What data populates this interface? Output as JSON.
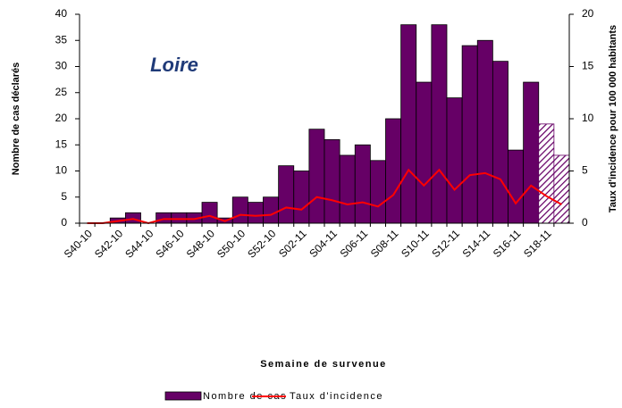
{
  "chart_data": {
    "type": "bar_line",
    "title": "Loire",
    "x_label": "Semaine de survenue",
    "y_label": "Nombre de cas déclarés",
    "y2_label": "Taux d'incidence pour 100 000 habitants",
    "categories": [
      "S40-10",
      null,
      "S42-10",
      null,
      "S44-10",
      null,
      "S46-10",
      null,
      "S48-10",
      null,
      "S50-10",
      null,
      "S52-10",
      null,
      "S02-11",
      null,
      "S04-11",
      null,
      "S06-11",
      null,
      "S08-11",
      null,
      "S10-11",
      null,
      "S12-11",
      null,
      "S14-11",
      null,
      "S16-11",
      null,
      "S18-11",
      null
    ],
    "series": [
      {
        "name": "Nombre de cas",
        "type": "bar",
        "color": "#660066",
        "values": [
          0,
          0,
          1,
          2,
          0,
          2,
          2,
          2,
          4,
          1,
          5,
          4,
          5,
          11,
          10,
          18,
          16,
          13,
          15,
          12,
          20,
          38,
          27,
          38,
          24,
          34,
          35,
          31,
          14,
          27,
          19,
          13
        ]
      },
      {
        "name": "Taux d'incidence",
        "type": "line",
        "axis": "y2",
        "color": "#ff0000",
        "values": [
          0,
          0,
          0.2,
          0.4,
          0,
          0.4,
          0.4,
          0.4,
          0.7,
          0.2,
          0.8,
          0.7,
          0.8,
          1.5,
          1.3,
          2.5,
          2.2,
          1.8,
          2.0,
          1.6,
          2.7,
          5.1,
          3.6,
          5.1,
          3.2,
          4.6,
          4.8,
          4.2,
          1.9,
          3.6,
          2.6,
          1.8
        ]
      }
    ],
    "hatch_last": 2,
    "ylim": [
      0,
      40
    ],
    "yticks": [
      0,
      5,
      10,
      15,
      20,
      25,
      30,
      35,
      40
    ],
    "y2lim": [
      0,
      20
    ],
    "y2ticks": [
      0,
      5,
      10,
      15,
      20
    ],
    "grid": false
  }
}
